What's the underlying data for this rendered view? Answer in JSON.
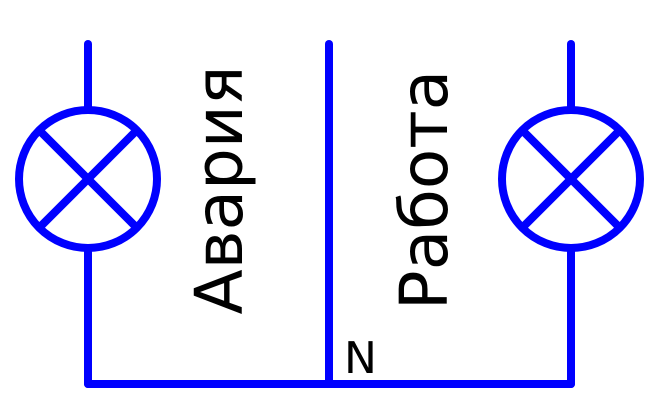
{
  "labels": {
    "alarm": "Авария",
    "work": "Работа",
    "neutral": "N"
  },
  "colors": {
    "wire": "#0000ff",
    "text": "#000000",
    "background": "#ffffff"
  },
  "icons": {
    "left_lamp": "lamp-symbol",
    "right_lamp": "lamp-symbol"
  }
}
